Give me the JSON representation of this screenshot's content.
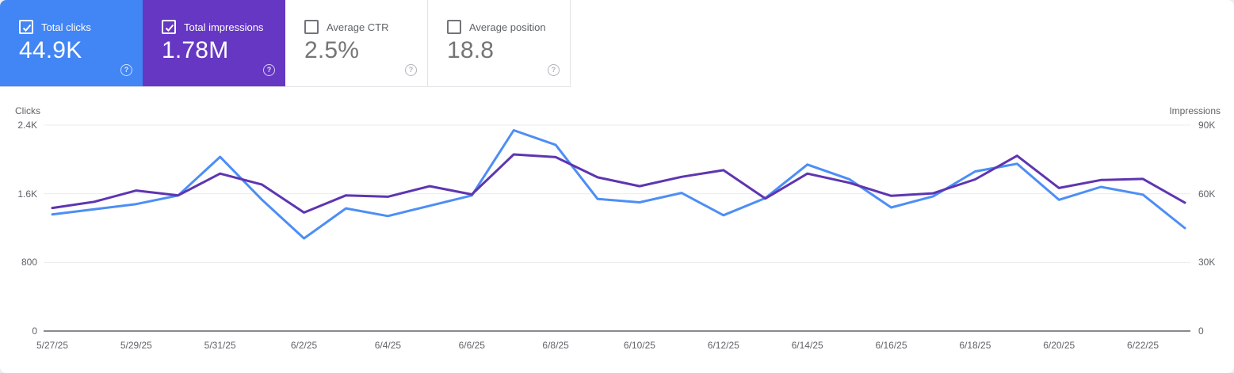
{
  "cards": [
    {
      "label": "Total clicks",
      "value": "44.9K",
      "selected": true,
      "color": "#4285f4"
    },
    {
      "label": "Total impressions",
      "value": "1.78M",
      "selected": true,
      "color": "#6637c2"
    },
    {
      "label": "Average CTR",
      "value": "2.5%",
      "selected": false,
      "color": ""
    },
    {
      "label": "Average position",
      "value": "18.8",
      "selected": false,
      "color": ""
    }
  ],
  "help_icon_glyph": "?",
  "chart_data": {
    "type": "line",
    "x": [
      "5/27/25",
      "5/28/25",
      "5/29/25",
      "5/30/25",
      "5/31/25",
      "6/1/25",
      "6/2/25",
      "6/3/25",
      "6/4/25",
      "6/5/25",
      "6/6/25",
      "6/7/25",
      "6/8/25",
      "6/9/25",
      "6/10/25",
      "6/11/25",
      "6/12/25",
      "6/13/25",
      "6/14/25",
      "6/15/25",
      "6/16/25",
      "6/17/25",
      "6/18/25",
      "6/19/25",
      "6/20/25",
      "6/21/25",
      "6/22/25",
      "6/23/25"
    ],
    "x_tick_every": 2,
    "series": [
      {
        "name": "Clicks",
        "axis": "left",
        "color": "#4d8ef5",
        "values": [
          1360,
          1420,
          1480,
          1580,
          2030,
          1530,
          1080,
          1430,
          1340,
          1460,
          1580,
          2340,
          2170,
          1540,
          1500,
          1610,
          1350,
          1550,
          1940,
          1770,
          1440,
          1570,
          1860,
          1950,
          1530,
          1680,
          1590,
          1200
        ]
      },
      {
        "name": "Impressions",
        "axis": "right",
        "color": "#5e35b1",
        "values": [
          53800,
          56500,
          61400,
          59300,
          68800,
          64000,
          51800,
          59300,
          58700,
          63300,
          59700,
          77200,
          76000,
          67200,
          63300,
          67400,
          70300,
          57900,
          68800,
          64800,
          59100,
          60200,
          66300,
          76600,
          62500,
          66000,
          66500,
          56100
        ]
      }
    ],
    "left_axis": {
      "title": "Clicks",
      "max": 2400,
      "ticks": [
        {
          "label": "2.4K",
          "value": 2400
        },
        {
          "label": "1.6K",
          "value": 1600
        },
        {
          "label": "800",
          "value": 800
        },
        {
          "label": "0",
          "value": 0
        }
      ]
    },
    "right_axis": {
      "title": "Impressions",
      "max": 90000,
      "ticks": [
        {
          "label": "90K",
          "value": 90000
        },
        {
          "label": "60K",
          "value": 60000
        },
        {
          "label": "30K",
          "value": 30000
        },
        {
          "label": "0",
          "value": 0
        }
      ]
    },
    "grid": {
      "light_color": "#ececec",
      "zero_color": "#858b90"
    }
  }
}
